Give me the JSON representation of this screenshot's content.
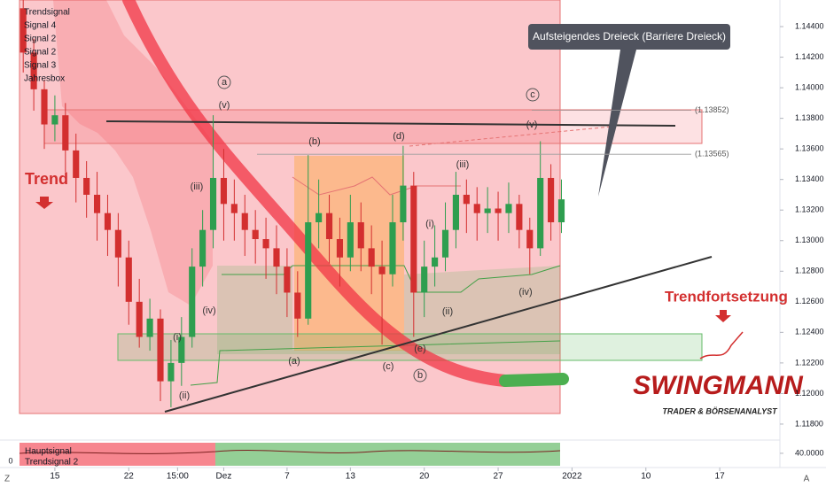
{
  "chart_data": {
    "type": "candlestick",
    "indicators": [
      "Trendsignal",
      "Signal 4",
      "Signal 2",
      "Signal 2",
      "Signal 3",
      "Jahresbox"
    ],
    "annotations": {
      "trend": "Trend",
      "continuation": "Trendfortsetzung",
      "pattern": "Aufsteigendes Dreieck (Barriere Dreieck)"
    },
    "wave_labels": [
      "(v)",
      "(iii)",
      "(iv)",
      "(i)",
      "(ii)",
      "(b)",
      "(d)",
      "(a)",
      "(c)",
      "(e)",
      "(i)",
      "(ii)",
      "(iii)",
      "(iv)",
      "(v)"
    ],
    "wave_degree_labels": [
      "a",
      "b",
      "c"
    ],
    "levels": [
      {
        "value": 1.13852,
        "label": "(1.13852)"
      },
      {
        "value": 1.13565,
        "label": "(1.13565)"
      }
    ],
    "x": [
      12,
      13,
      14,
      15,
      16,
      17,
      18,
      19,
      20,
      21,
      22,
      23,
      24,
      25,
      26,
      27,
      28,
      29,
      30,
      31,
      32,
      33,
      34,
      35,
      36,
      37,
      38,
      39,
      40,
      41,
      42,
      43,
      44,
      45,
      46,
      47,
      48,
      49,
      50,
      51,
      52,
      53,
      54,
      55,
      56,
      57,
      58,
      59,
      60,
      61,
      62,
      63
    ],
    "open": [
      1.1452,
      1.1423,
      1.1399,
      1.1376,
      1.1382,
      1.1359,
      1.1341,
      1.133,
      1.1318,
      1.1307,
      1.1289,
      1.126,
      1.1237,
      1.1249,
      1.1208,
      1.122,
      1.1237,
      1.1283,
      1.1307,
      1.1341,
      1.1324,
      1.1318,
      1.1307,
      1.1301,
      1.1295,
      1.1283,
      1.1266,
      1.1249,
      1.1312,
      1.1318,
      1.1301,
      1.1289,
      1.1312,
      1.1295,
      1.1283,
      1.1278,
      1.1312,
      1.1336,
      1.1266,
      1.1283,
      1.1289,
      1.1307,
      1.133,
      1.1324,
      1.1318,
      1.1321,
      1.1318,
      1.1324,
      1.1307,
      1.1295,
      1.1341,
      1.1312
    ],
    "high": [
      1.146,
      1.1432,
      1.1405,
      1.1395,
      1.139,
      1.137,
      1.1352,
      1.1345,
      1.133,
      1.1318,
      1.13,
      1.1275,
      1.1262,
      1.1255,
      1.1235,
      1.125,
      1.1295,
      1.132,
      1.1382,
      1.136,
      1.134,
      1.133,
      1.132,
      1.1315,
      1.131,
      1.1295,
      1.128,
      1.1356,
      1.134,
      1.133,
      1.1315,
      1.133,
      1.1325,
      1.131,
      1.13,
      1.133,
      1.1362,
      1.1345,
      1.13,
      1.131,
      1.1325,
      1.1345,
      1.134,
      1.1335,
      1.1335,
      1.1332,
      1.1338,
      1.133,
      1.1315,
      1.1365,
      1.135,
      1.134
    ],
    "low": [
      1.141,
      1.1385,
      1.136,
      1.1365,
      1.1345,
      1.1325,
      1.1315,
      1.13,
      1.129,
      1.127,
      1.1245,
      1.123,
      1.1228,
      1.1195,
      1.1191,
      1.1205,
      1.123,
      1.127,
      1.1295,
      1.13,
      1.13,
      1.129,
      1.1285,
      1.1275,
      1.1265,
      1.125,
      1.1237,
      1.1245,
      1.1295,
      1.1285,
      1.127,
      1.128,
      1.128,
      1.1265,
      1.1232,
      1.127,
      1.13,
      1.1237,
      1.125,
      1.127,
      1.128,
      1.1295,
      1.1305,
      1.13,
      1.1305,
      1.13,
      1.1305,
      1.1295,
      1.1278,
      1.129,
      1.13,
      1.1305
    ],
    "close": [
      1.1423,
      1.1399,
      1.1376,
      1.1382,
      1.1359,
      1.1341,
      1.133,
      1.1318,
      1.1307,
      1.1289,
      1.126,
      1.1237,
      1.1249,
      1.1208,
      1.122,
      1.1237,
      1.1283,
      1.1307,
      1.1341,
      1.1324,
      1.1318,
      1.1307,
      1.1301,
      1.1295,
      1.1283,
      1.1266,
      1.1249,
      1.1312,
      1.1318,
      1.1301,
      1.1289,
      1.1312,
      1.1295,
      1.1283,
      1.1278,
      1.1312,
      1.1336,
      1.1266,
      1.1283,
      1.1289,
      1.1307,
      1.133,
      1.1324,
      1.1318,
      1.1321,
      1.1318,
      1.1324,
      1.1307,
      1.1295,
      1.1341,
      1.1312,
      1.1327
    ],
    "up_color": "#2e9e4f",
    "down_color": "#d32f2f",
    "xlim": [
      9.8,
      83.7
    ],
    "xticks": [
      {
        "value": 15,
        "label": "15"
      },
      {
        "value": 22,
        "label": "22"
      },
      {
        "value": 26.625,
        "label": "15:00"
      },
      {
        "value": 31,
        "label": "Dez"
      },
      {
        "value": 37,
        "label": "7"
      },
      {
        "value": 43,
        "label": "13"
      },
      {
        "value": 50,
        "label": "20"
      },
      {
        "value": 57,
        "label": "27"
      },
      {
        "value": 64,
        "label": "2022"
      },
      {
        "value": 71,
        "label": "10"
      },
      {
        "value": 78,
        "label": "17"
      }
    ],
    "ylim": [
      1.11707,
      1.14574
    ],
    "yticks": [
      {
        "value": 1.118,
        "label": "1.11800"
      },
      {
        "value": 1.12,
        "label": "1.12000"
      },
      {
        "value": 1.122,
        "label": "1.12200"
      },
      {
        "value": 1.124,
        "label": "1.12400"
      },
      {
        "value": 1.126,
        "label": "1.12600"
      },
      {
        "value": 1.128,
        "label": "1.12800"
      },
      {
        "value": 1.13,
        "label": "1.13000"
      },
      {
        "value": 1.132,
        "label": "1.13200"
      },
      {
        "value": 1.134,
        "label": "1.13400"
      },
      {
        "value": 1.136,
        "label": "1.13600"
      },
      {
        "value": 1.138,
        "label": "1.13800"
      },
      {
        "value": 1.14,
        "label": "1.14000"
      },
      {
        "value": 1.142,
        "label": "1.14200"
      },
      {
        "value": 1.144,
        "label": "1.14400"
      }
    ],
    "grid": false,
    "indicator": {
      "labels": [
        "Hauptsignal",
        "Trendsignal 2"
      ],
      "ylim": [
        0,
        77
      ],
      "yticks": [
        {
          "value": 40,
          "label": "40.0000"
        }
      ],
      "left_label": "0"
    }
  },
  "logo": {
    "name": "SWINGMANN",
    "tagline": "TRADER & BÖRSENANALYST"
  },
  "ui": {
    "left_button": "Z",
    "right_button": "A"
  }
}
